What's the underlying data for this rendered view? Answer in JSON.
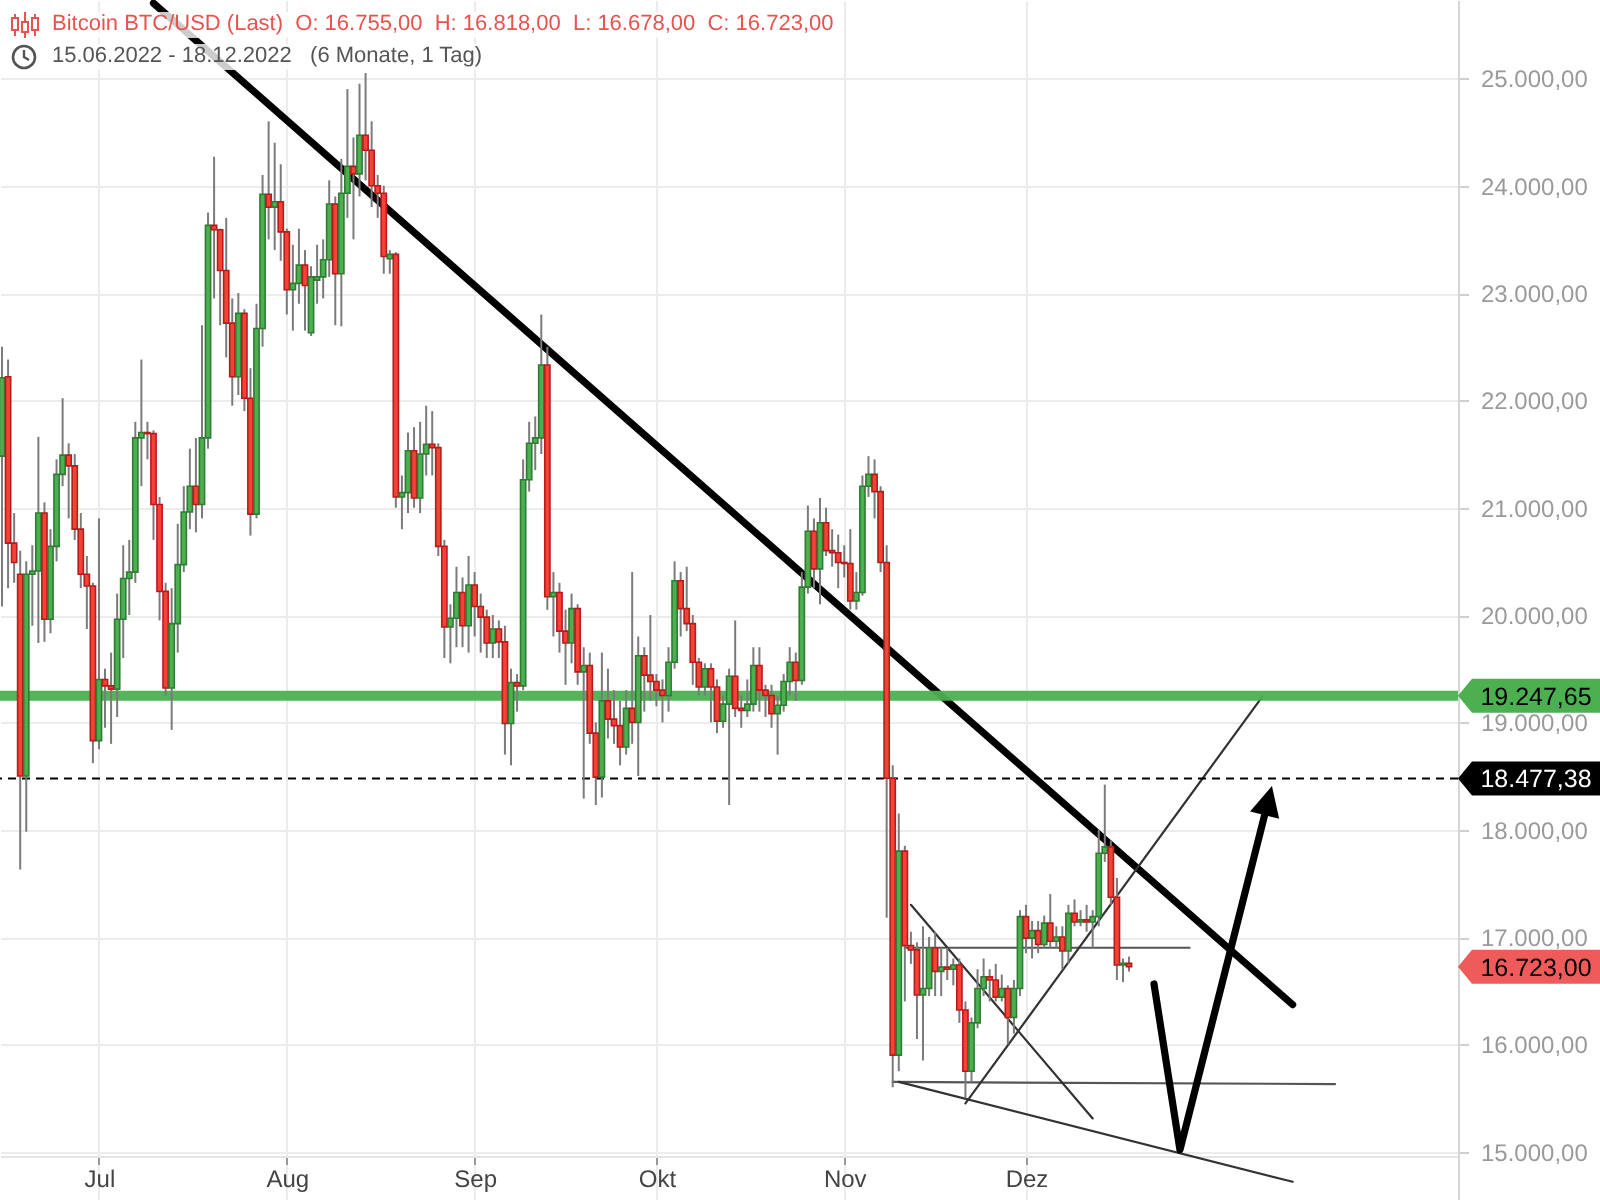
{
  "chart_data": {
    "type": "candlestick",
    "title": "Bitcoin BTC/USD (Last)  O: 16.755,00  H: 16.818,00  L: 16.678,00  C: 16.723,00",
    "subtitle": "15.06.2022 - 18.12.2022   (6 Monate, 1 Tag)",
    "x": [
      "2022-06-15",
      "2022-06-16",
      "2022-06-17",
      "2022-06-18",
      "2022-06-19",
      "2022-06-20",
      "2022-06-21",
      "2022-06-22",
      "2022-06-23",
      "2022-06-24",
      "2022-06-25",
      "2022-06-26",
      "2022-06-27",
      "2022-06-28",
      "2022-06-29",
      "2022-06-30",
      "2022-07-01",
      "2022-07-02",
      "2022-07-03",
      "2022-07-04",
      "2022-07-05",
      "2022-07-06",
      "2022-07-07",
      "2022-07-08",
      "2022-07-09",
      "2022-07-10",
      "2022-07-11",
      "2022-07-12",
      "2022-07-13",
      "2022-07-14",
      "2022-07-15",
      "2022-07-16",
      "2022-07-17",
      "2022-07-18",
      "2022-07-19",
      "2022-07-20",
      "2022-07-21",
      "2022-07-22",
      "2022-07-23",
      "2022-07-24",
      "2022-07-25",
      "2022-07-26",
      "2022-07-27",
      "2022-07-28",
      "2022-07-29",
      "2022-07-30",
      "2022-07-31",
      "2022-08-01",
      "2022-08-02",
      "2022-08-03",
      "2022-08-04",
      "2022-08-05",
      "2022-08-06",
      "2022-08-07",
      "2022-08-08",
      "2022-08-09",
      "2022-08-10",
      "2022-08-11",
      "2022-08-12",
      "2022-08-13",
      "2022-08-14",
      "2022-08-15",
      "2022-08-16",
      "2022-08-17",
      "2022-08-18",
      "2022-08-19",
      "2022-08-20",
      "2022-08-21",
      "2022-08-22",
      "2022-08-23",
      "2022-08-24",
      "2022-08-25",
      "2022-08-26",
      "2022-08-27",
      "2022-08-28",
      "2022-08-29",
      "2022-08-30",
      "2022-08-31",
      "2022-09-01",
      "2022-09-02",
      "2022-09-03",
      "2022-09-04",
      "2022-09-05",
      "2022-09-06",
      "2022-09-07",
      "2022-09-08",
      "2022-09-09",
      "2022-09-10",
      "2022-09-11",
      "2022-09-12",
      "2022-09-13",
      "2022-09-14",
      "2022-09-15",
      "2022-09-16",
      "2022-09-17",
      "2022-09-18",
      "2022-09-19",
      "2022-09-20",
      "2022-09-21",
      "2022-09-22",
      "2022-09-23",
      "2022-09-24",
      "2022-09-25",
      "2022-09-26",
      "2022-09-27",
      "2022-09-28",
      "2022-09-29",
      "2022-09-30",
      "2022-10-01",
      "2022-10-02",
      "2022-10-03",
      "2022-10-04",
      "2022-10-05",
      "2022-10-06",
      "2022-10-07",
      "2022-10-08",
      "2022-10-09",
      "2022-10-10",
      "2022-10-11",
      "2022-10-12",
      "2022-10-13",
      "2022-10-14",
      "2022-10-15",
      "2022-10-16",
      "2022-10-17",
      "2022-10-18",
      "2022-10-19",
      "2022-10-20",
      "2022-10-21",
      "2022-10-22",
      "2022-10-23",
      "2022-10-24",
      "2022-10-25",
      "2022-10-26",
      "2022-10-27",
      "2022-10-28",
      "2022-10-29",
      "2022-10-30",
      "2022-10-31",
      "2022-11-01",
      "2022-11-02",
      "2022-11-03",
      "2022-11-04",
      "2022-11-05",
      "2022-11-06",
      "2022-11-07",
      "2022-11-08",
      "2022-11-09",
      "2022-11-10",
      "2022-11-11",
      "2022-11-12",
      "2022-11-13",
      "2022-11-14",
      "2022-11-15",
      "2022-11-16",
      "2022-11-17",
      "2022-11-18",
      "2022-11-19",
      "2022-11-20",
      "2022-11-21",
      "2022-11-22",
      "2022-11-23",
      "2022-11-24",
      "2022-11-25",
      "2022-11-26",
      "2022-11-27",
      "2022-11-28",
      "2022-11-29",
      "2022-11-30",
      "2022-12-01",
      "2022-12-02",
      "2022-12-03",
      "2022-12-04",
      "2022-12-05",
      "2022-12-06",
      "2022-12-07",
      "2022-12-08",
      "2022-12-09",
      "2022-12-10",
      "2022-12-11",
      "2022-12-12",
      "2022-12-13",
      "2022-12-14",
      "2022-12-15",
      "2022-12-16",
      "2022-12-17",
      "2022-12-18"
    ],
    "ohlc": [
      [
        21480,
        22500,
        20080,
        22210
      ],
      [
        22220,
        22380,
        20250,
        20670
      ],
      [
        20670,
        20950,
        20300,
        20490
      ],
      [
        20380,
        20600,
        17630,
        18500
      ],
      [
        18500,
        20500,
        17980,
        20380
      ],
      [
        20380,
        20650,
        19900,
        20410
      ],
      [
        20410,
        21660,
        19740,
        20950
      ],
      [
        20950,
        21050,
        19750,
        19960
      ],
      [
        19960,
        20800,
        19830,
        20640
      ],
      [
        20640,
        21450,
        20500,
        21310
      ],
      [
        21310,
        22020,
        21200,
        21490
      ],
      [
        21490,
        21600,
        20900,
        21390
      ],
      [
        21390,
        21500,
        20700,
        20800
      ],
      [
        20800,
        20950,
        20250,
        20380
      ],
      [
        20380,
        20550,
        19870,
        20270
      ],
      [
        20270,
        20300,
        18620,
        18830
      ],
      [
        18830,
        20900,
        18750,
        19400
      ],
      [
        19400,
        19500,
        18950,
        19340
      ],
      [
        19340,
        19650,
        18800,
        19310
      ],
      [
        19310,
        20200,
        19050,
        19960
      ],
      [
        19960,
        20650,
        19600,
        20340
      ],
      [
        20340,
        20700,
        20000,
        20400
      ],
      [
        20400,
        21800,
        20300,
        21650
      ],
      [
        21650,
        22380,
        21200,
        21700
      ],
      [
        21700,
        21800,
        21450,
        21690
      ],
      [
        21690,
        21720,
        20700,
        21030
      ],
      [
        21030,
        21100,
        19950,
        20220
      ],
      [
        20220,
        20300,
        19250,
        19320
      ],
      [
        19320,
        20250,
        18930,
        19920
      ],
      [
        19920,
        20850,
        19650,
        20470
      ],
      [
        20470,
        21200,
        20400,
        20960
      ],
      [
        20960,
        21550,
        20800,
        21200
      ],
      [
        21200,
        21650,
        20770,
        21030
      ],
      [
        21030,
        22700,
        20900,
        21650
      ],
      [
        21650,
        23750,
        21550,
        23630
      ],
      [
        23630,
        24270,
        22950,
        23590
      ],
      [
        23590,
        23600,
        22700,
        23210
      ],
      [
        23210,
        23700,
        22400,
        22720
      ],
      [
        22720,
        22950,
        21950,
        22220
      ],
      [
        22220,
        23000,
        22050,
        22810
      ],
      [
        22810,
        22850,
        21900,
        22020
      ],
      [
        22020,
        22300,
        20740,
        20940
      ],
      [
        20940,
        22900,
        20900,
        22670
      ],
      [
        22670,
        24100,
        22500,
        23920
      ],
      [
        23920,
        24600,
        23500,
        23800
      ],
      [
        23800,
        24400,
        23400,
        23850
      ],
      [
        23850,
        24200,
        23300,
        23570
      ],
      [
        23570,
        23600,
        22800,
        23030
      ],
      [
        23030,
        23450,
        22650,
        23090
      ],
      [
        23090,
        23600,
        22900,
        23260
      ],
      [
        23260,
        23400,
        22650,
        23070
      ],
      [
        22630,
        23250,
        22600,
        23150
      ],
      [
        23120,
        23450,
        22900,
        23150
      ],
      [
        23150,
        23500,
        22950,
        23310
      ],
      [
        23310,
        24050,
        23150,
        23830
      ],
      [
        23830,
        23900,
        22700,
        23180
      ],
      [
        23180,
        24250,
        22690,
        23930
      ],
      [
        23930,
        24900,
        23700,
        24180
      ],
      [
        24180,
        24450,
        23500,
        24110
      ],
      [
        24110,
        24950,
        23900,
        24470
      ],
      [
        24470,
        25050,
        24050,
        24330
      ],
      [
        24330,
        24600,
        23800,
        24000
      ],
      [
        24000,
        24100,
        23700,
        23930
      ],
      [
        23930,
        24000,
        23180,
        23340
      ],
      [
        23320,
        23400,
        23180,
        23360
      ],
      [
        23360,
        23380,
        21000,
        21100
      ],
      [
        21100,
        21300,
        20800,
        21140
      ],
      [
        21140,
        21700,
        20950,
        21530
      ],
      [
        21530,
        21750,
        21000,
        21090
      ],
      [
        21090,
        21800,
        20950,
        21500
      ],
      [
        21500,
        21950,
        21300,
        21590
      ],
      [
        21590,
        21900,
        21300,
        21560
      ],
      [
        21560,
        21600,
        20550,
        20640
      ],
      [
        20640,
        20700,
        19600,
        19890
      ],
      [
        19890,
        20100,
        19550,
        19970
      ],
      [
        19970,
        20450,
        19700,
        20210
      ],
      [
        20210,
        20350,
        19700,
        19900
      ],
      [
        19900,
        20550,
        19650,
        20280
      ],
      [
        20280,
        20400,
        19800,
        20080
      ],
      [
        20080,
        20200,
        19650,
        19980
      ],
      [
        19980,
        20050,
        19600,
        19740
      ],
      [
        19740,
        20000,
        19600,
        19870
      ],
      [
        19870,
        19950,
        19600,
        19750
      ],
      [
        19750,
        19900,
        18700,
        18990
      ],
      [
        18990,
        19500,
        18600,
        19370
      ],
      [
        19370,
        19450,
        19100,
        19340
      ],
      [
        19340,
        21450,
        19300,
        21260
      ],
      [
        21260,
        21800,
        21150,
        21600
      ],
      [
        21600,
        21850,
        21350,
        21650
      ],
      [
        21650,
        22800,
        21500,
        22330
      ],
      [
        22330,
        22500,
        20050,
        20170
      ],
      [
        20170,
        20400,
        19800,
        20210
      ],
      [
        20210,
        20300,
        19650,
        19850
      ],
      [
        19850,
        20050,
        19350,
        19740
      ],
      [
        19740,
        20200,
        19550,
        20060
      ],
      [
        20060,
        20100,
        19350,
        19470
      ],
      [
        19470,
        19700,
        18290,
        19530
      ],
      [
        19530,
        19650,
        18800,
        18900
      ],
      [
        18900,
        19000,
        18230,
        18490
      ],
      [
        18490,
        19650,
        18300,
        19200
      ],
      [
        19200,
        19500,
        18850,
        19030
      ],
      [
        19030,
        19300,
        18800,
        18970
      ],
      [
        18970,
        19200,
        18600,
        18770
      ],
      [
        18770,
        19300,
        18700,
        19130
      ],
      [
        19130,
        20400,
        18800,
        19000
      ],
      [
        19000,
        19800,
        18500,
        19620
      ],
      [
        19620,
        19700,
        19100,
        19440
      ],
      [
        19440,
        20000,
        19200,
        19380
      ],
      [
        19380,
        19450,
        19150,
        19300
      ],
      [
        19300,
        19400,
        19000,
        19250
      ],
      [
        19250,
        19700,
        19100,
        19560
      ],
      [
        19560,
        20500,
        19500,
        20320
      ],
      [
        20320,
        20400,
        19800,
        20060
      ],
      [
        20060,
        20450,
        19850,
        19920
      ],
      [
        19920,
        20000,
        19350,
        19560
      ],
      [
        19560,
        19600,
        19250,
        19330
      ],
      [
        19330,
        19550,
        19250,
        19500
      ],
      [
        19500,
        19550,
        19000,
        19330
      ],
      [
        19330,
        19400,
        18900,
        19010
      ],
      [
        19010,
        19250,
        18950,
        19170
      ],
      [
        19170,
        19500,
        18230,
        19430
      ],
      [
        19430,
        19950,
        19050,
        19130
      ],
      [
        19130,
        19250,
        18950,
        19110
      ],
      [
        19110,
        19400,
        19050,
        19170
      ],
      [
        19170,
        19700,
        19100,
        19530
      ],
      [
        19530,
        19700,
        19100,
        19300
      ],
      [
        19300,
        19350,
        19050,
        19250
      ],
      [
        19250,
        19350,
        18950,
        19080
      ],
      [
        19080,
        19250,
        18700,
        19160
      ],
      [
        19160,
        19450,
        19100,
        19380
      ],
      [
        19380,
        19700,
        19250,
        19560
      ],
      [
        19560,
        19650,
        19200,
        19390
      ],
      [
        19390,
        20400,
        19350,
        20260
      ],
      [
        20260,
        21020,
        20200,
        20780
      ],
      [
        20780,
        20900,
        20250,
        20430
      ],
      [
        20430,
        21090,
        20100,
        20860
      ],
      [
        20860,
        21000,
        20550,
        20600
      ],
      [
        20600,
        20800,
        20450,
        20580
      ],
      [
        20580,
        20750,
        20250,
        20490
      ],
      [
        20490,
        20650,
        20350,
        20480
      ],
      [
        20480,
        20800,
        20050,
        20130
      ],
      [
        20130,
        20400,
        20050,
        20210
      ],
      [
        20210,
        21300,
        20180,
        21200
      ],
      [
        21200,
        21480,
        21100,
        21310
      ],
      [
        21310,
        21450,
        20900,
        21150
      ],
      [
        21150,
        21200,
        20400,
        20490
      ],
      [
        20490,
        20650,
        17180,
        18480
      ],
      [
        18480,
        18600,
        15600,
        15900
      ],
      [
        15900,
        18150,
        15750,
        17800
      ],
      [
        17800,
        17850,
        16400,
        16920
      ],
      [
        16920,
        17050,
        16750,
        16880
      ],
      [
        16880,
        16950,
        16050,
        16460
      ],
      [
        16460,
        17100,
        15850,
        16520
      ],
      [
        16520,
        17000,
        16450,
        16900
      ],
      [
        16900,
        17050,
        16450,
        16680
      ],
      [
        16680,
        16900,
        16450,
        16720
      ],
      [
        16720,
        16900,
        16600,
        16700
      ],
      [
        16700,
        16800,
        16550,
        16740
      ],
      [
        16740,
        16800,
        16200,
        16320
      ],
      [
        16320,
        16400,
        15500,
        15750
      ],
      [
        15750,
        16250,
        15650,
        16200
      ],
      [
        16200,
        16700,
        16150,
        16520
      ],
      [
        16520,
        16800,
        16450,
        16630
      ],
      [
        16630,
        16700,
        16400,
        16600
      ],
      [
        16600,
        16750,
        16400,
        16440
      ],
      [
        16440,
        16650,
        16400,
        16520
      ],
      [
        16520,
        16550,
        16000,
        16250
      ],
      [
        16250,
        16600,
        16100,
        16520
      ],
      [
        16520,
        17250,
        16450,
        17190
      ],
      [
        17190,
        17300,
        16850,
        16990
      ],
      [
        16990,
        17150,
        16800,
        17060
      ],
      [
        17060,
        17150,
        16850,
        16930
      ],
      [
        16930,
        17200,
        16900,
        17130
      ],
      [
        17130,
        17400,
        16900,
        16960
      ],
      [
        16960,
        17100,
        16900,
        17000
      ],
      [
        17000,
        17100,
        16700,
        16870
      ],
      [
        16870,
        17300,
        16750,
        17220
      ],
      [
        17220,
        17350,
        17100,
        17140
      ],
      [
        17140,
        17250,
        17100,
        17160
      ],
      [
        17160,
        17300,
        17050,
        17140
      ],
      [
        17140,
        17250,
        16900,
        17190
      ],
      [
        17190,
        18000,
        17100,
        17780
      ],
      [
        17780,
        18420,
        17700,
        17840
      ],
      [
        17840,
        17900,
        17300,
        17370
      ],
      [
        17370,
        17550,
        16600,
        16740
      ],
      [
        16740,
        16800,
        16580,
        16755
      ],
      [
        16755,
        16818,
        16678,
        16723
      ]
    ],
    "series": [
      {
        "type": "line",
        "x": [
          "2022-07-10",
          "2023-01-14"
        ],
        "values": [
          25700,
          16370
        ],
        "color": "#000000"
      },
      {
        "type": "line",
        "x": [
          "2022-11-11",
          "2022-12-28"
        ],
        "values": [
          16900,
          16900
        ],
        "color": "#555555"
      },
      {
        "type": "line",
        "x": [
          "2022-11-09",
          "2023-01-21"
        ],
        "values": [
          15650,
          15630
        ],
        "color": "#555555"
      },
      {
        "type": "line",
        "x": [
          "2022-11-10",
          "2023-01-14"
        ],
        "values": [
          15650,
          14720
        ],
        "color": "#333333"
      },
      {
        "type": "line",
        "x": [
          "2022-11-12",
          "2022-12-12"
        ],
        "values": [
          17300,
          15310
        ],
        "color": "#333333"
      },
      {
        "type": "line",
        "x": [
          "2022-11-21",
          "2023-01-09"
        ],
        "values": [
          15450,
          19240
        ],
        "color": "#333333"
      }
    ],
    "xlim": [
      "2022-06-14T16:00",
      "2023-02-10T07:00"
    ],
    "xticks": [
      {
        "value": "2022-07-01",
        "label": "Jul"
      },
      {
        "value": "2022-08-01",
        "label": "Aug"
      },
      {
        "value": "2022-09-01",
        "label": "Sep"
      },
      {
        "value": "2022-10-01",
        "label": "Okt"
      },
      {
        "value": "2022-11-01",
        "label": "Nov"
      },
      {
        "value": "2022-12-01",
        "label": "Dez"
      }
    ],
    "ylim": [
      14550,
      25730
    ],
    "yticks": [
      {
        "value": 15000,
        "label": "15.000,00"
      },
      {
        "value": 16000,
        "label": "16.000,00"
      },
      {
        "value": 17000,
        "label": "17.000,00"
      },
      {
        "value": 18000,
        "label": "18.000,00"
      },
      {
        "value": 19000,
        "label": "19.000,00"
      },
      {
        "value": 20000,
        "label": "20.000,00"
      },
      {
        "value": 21000,
        "label": "21.000,00"
      },
      {
        "value": 22000,
        "label": "22.000,00"
      },
      {
        "value": 23000,
        "label": "23.000,00"
      },
      {
        "value": 24000,
        "label": "24.000,00"
      },
      {
        "value": 25000,
        "label": "25.000,00"
      }
    ],
    "grid": true,
    "ref_lines": [
      {
        "axis": "y",
        "value": 19247.65,
        "label": "19.247,65",
        "color": "#4caf50"
      },
      {
        "axis": "y",
        "value": 18477.38,
        "label": "18.477,38",
        "color": "#000000",
        "line_style": "dashed"
      }
    ],
    "annotations": [
      "16.723,00"
    ]
  }
}
